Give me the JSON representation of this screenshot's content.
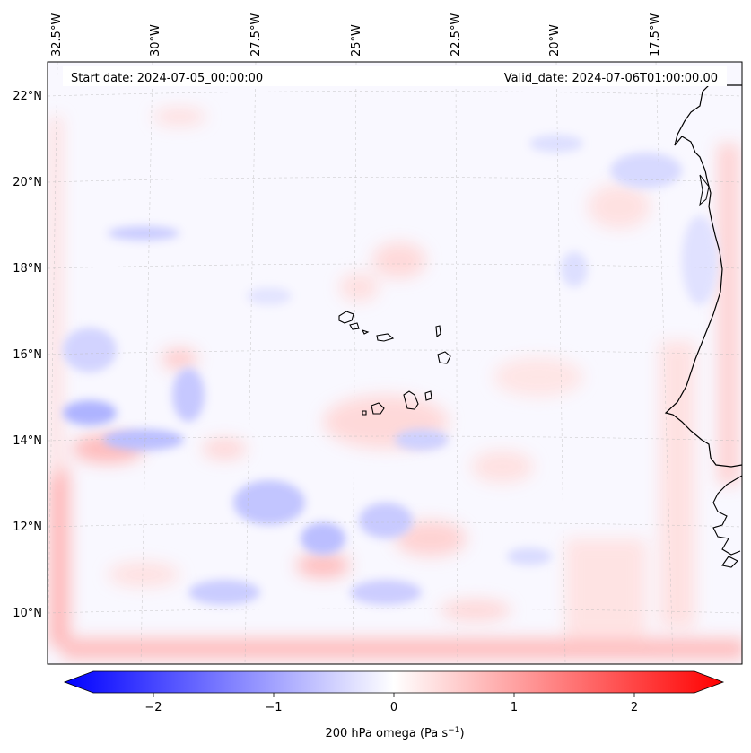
{
  "header": {
    "start_date": "Start date: 2024-07-05_00:00:00",
    "valid_date": "Valid_date: 2024-07-06T01:00:00.00"
  },
  "longitude_labels": [
    "32.5°W",
    "30°W",
    "27.5°W",
    "25°W",
    "22.5°W",
    "20°W",
    "17.5°W"
  ],
  "latitude_labels": [
    "22°N",
    "20°N",
    "18°N",
    "16°N",
    "14°N",
    "12°N",
    "10°N"
  ],
  "colorbar": {
    "label": "200 hPa omega (Pa s",
    "label_exponent": "−1",
    "label_close": ")",
    "ticks": [
      "−2",
      "−1",
      "0",
      "1",
      "2"
    ],
    "tick_values": [
      -2,
      -1,
      0,
      1,
      2
    ],
    "range": [
      -2.5,
      2.5
    ],
    "colors": {
      "negative": "#0000ff",
      "zero": "#ffffff",
      "positive": "#ff0000"
    }
  },
  "field": {
    "name": "200 hPa omega",
    "units": "Pa s-1"
  }
}
